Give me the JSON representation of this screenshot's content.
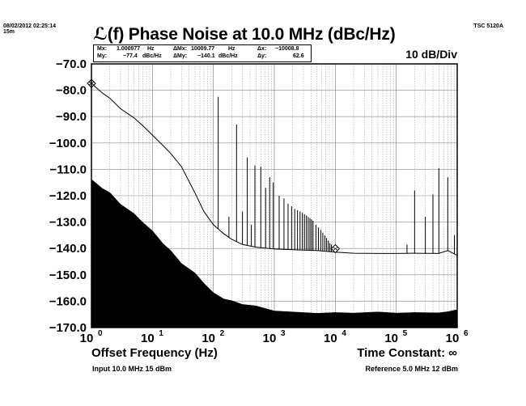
{
  "header": {
    "timestamp": "08/02/2012 02:25:14",
    "duration": "15m",
    "model": "TSC 5120A",
    "scale": "10 dB/Div"
  },
  "readout": {
    "mx_label": "Mx:",
    "mx_value": "1.000977",
    "mx_unit": "Hz",
    "my_label": "My:",
    "my_value": "−77.4",
    "my_unit": "dBc/Hz",
    "dmx_label": "ΔMx:",
    "dmx_value": "10009.77",
    "dmx_unit": "Hz",
    "dmy_label": "ΔMy:",
    "dmy_value": "−140.1",
    "dmy_unit": "dBc/Hz",
    "dx_label": "Δx:",
    "dx_value": "−10008.8",
    "dy_label": "Δy:",
    "dy_value": "62.6"
  },
  "footer": {
    "time_constant": "Time Constant: ∞",
    "input": "Input 10.0 MHz 15 dBm",
    "reference": "Reference 5.0 MHz 12 dBm"
  },
  "chart_data": {
    "type": "line",
    "title": "ℒ(f) Phase Noise at 10.0 MHz (dBc/Hz)",
    "xlabel": "Offset Frequency (Hz)",
    "ylabel": "",
    "x_scale": "log",
    "xlim": [
      1,
      1000000
    ],
    "ylim": [
      -170,
      -70
    ],
    "grid": true,
    "y_ticks": [
      "−70.0",
      "−80.0",
      "−90.0",
      "−100.0",
      "−110.0",
      "−120.0",
      "−130.0",
      "−140.0",
      "−150.0",
      "−160.0",
      "−170.0"
    ],
    "x_ticks": [
      {
        "base": "10",
        "exp": "0"
      },
      {
        "base": "10",
        "exp": "1"
      },
      {
        "base": "10",
        "exp": "2"
      },
      {
        "base": "10",
        "exp": "3"
      },
      {
        "base": "10",
        "exp": "4"
      },
      {
        "base": "10",
        "exp": "5"
      },
      {
        "base": "10",
        "exp": "6"
      }
    ],
    "series": [
      {
        "kind": "line",
        "color": "#000000",
        "x": [
          1,
          1.5,
          2,
          3,
          5,
          7,
          10,
          15,
          20,
          30,
          50,
          70,
          100,
          150,
          200,
          300,
          500,
          1000,
          2000,
          5000,
          10000,
          20000,
          50000,
          100000,
          200000,
          500000,
          700000,
          1000000
        ],
        "y": [
          -77.4,
          -81,
          -83,
          -87,
          -90.5,
          -93.5,
          -97,
          -101,
          -104,
          -109,
          -119,
          -126,
          -131,
          -134.5,
          -136.5,
          -138.5,
          -139.5,
          -140.2,
          -140.5,
          -140.8,
          -141.4,
          -141.8,
          -141.9,
          -141.9,
          -141.8,
          -141.9,
          -140.8,
          -142.6
        ]
      },
      {
        "kind": "area",
        "color": "#000000",
        "x": [
          1,
          1.5,
          2,
          3,
          5,
          7,
          10,
          15,
          20,
          30,
          50,
          70,
          100,
          150,
          200,
          300,
          500,
          1000,
          2000,
          5000,
          10000,
          20000,
          50000,
          100000,
          200000,
          500000,
          700000,
          1000000
        ],
        "y": [
          -114,
          -117,
          -119,
          -123,
          -127,
          -130,
          -133.5,
          -138,
          -141,
          -145.5,
          -149.5,
          -153,
          -157,
          -159,
          -160,
          -161,
          -162,
          -163.5,
          -164.3,
          -164.4,
          -164.5,
          -164.3,
          -164.3,
          -164.3,
          -164.5,
          -164.2,
          -164.2,
          -163
        ]
      }
    ],
    "spurs": [
      {
        "x": 120,
        "y": -82.5
      },
      {
        "x": 180,
        "y": -128
      },
      {
        "x": 240,
        "y": -93
      },
      {
        "x": 300,
        "y": -126
      },
      {
        "x": 360,
        "y": -105.5
      },
      {
        "x": 420,
        "y": -131
      },
      {
        "x": 480,
        "y": -108.5
      },
      {
        "x": 600,
        "y": -109
      },
      {
        "x": 720,
        "y": -117
      },
      {
        "x": 840,
        "y": -113
      },
      {
        "x": 960,
        "y": -115
      },
      {
        "x": 1200,
        "y": -120
      },
      {
        "x": 1440,
        "y": -121
      },
      {
        "x": 1680,
        "y": -123
      },
      {
        "x": 1920,
        "y": -124
      },
      {
        "x": 2160,
        "y": -125
      },
      {
        "x": 2400,
        "y": -125.5
      },
      {
        "x": 2640,
        "y": -126
      },
      {
        "x": 2880,
        "y": -126.5
      },
      {
        "x": 3120,
        "y": -127
      },
      {
        "x": 3360,
        "y": -127.5
      },
      {
        "x": 3600,
        "y": -128
      },
      {
        "x": 3840,
        "y": -128.5
      },
      {
        "x": 4080,
        "y": -129
      },
      {
        "x": 4320,
        "y": -129.5
      },
      {
        "x": 4800,
        "y": -131
      },
      {
        "x": 5280,
        "y": -132
      },
      {
        "x": 5760,
        "y": -133
      },
      {
        "x": 6240,
        "y": -134
      },
      {
        "x": 6720,
        "y": -135
      },
      {
        "x": 7200,
        "y": -136
      },
      {
        "x": 7680,
        "y": -137
      },
      {
        "x": 8160,
        "y": -138
      },
      {
        "x": 8640,
        "y": -138.5
      },
      {
        "x": 150000,
        "y": -138.5
      },
      {
        "x": 200000,
        "y": -118
      },
      {
        "x": 300000,
        "y": -128
      },
      {
        "x": 400000,
        "y": -119.5
      },
      {
        "x": 500000,
        "y": -109.5
      },
      {
        "x": 700000,
        "y": -113
      },
      {
        "x": 900000,
        "y": -135
      }
    ],
    "markers": [
      {
        "x": 1.000977,
        "y": -77.4,
        "shape": "diamond"
      },
      {
        "x": 10009.77,
        "y": -140.1,
        "shape": "diamond"
      }
    ]
  }
}
